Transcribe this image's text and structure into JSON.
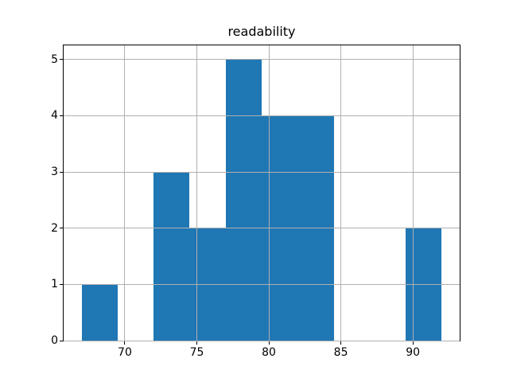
{
  "chart_data": {
    "type": "bar",
    "subtype": "histogram",
    "title": "readability",
    "xlabel": "",
    "ylabel": "",
    "bin_edges": [
      67.0,
      69.5,
      72.0,
      74.5,
      77.0,
      79.5,
      82.0,
      84.5,
      87.0,
      89.5,
      92.0
    ],
    "counts": [
      1,
      0,
      3,
      2,
      5,
      4,
      4,
      0,
      0,
      2
    ],
    "xticks": [
      70,
      75,
      80,
      85,
      90
    ],
    "yticks": [
      0,
      1,
      2,
      3,
      4,
      5
    ],
    "xlim": [
      65.75,
      93.25
    ],
    "ylim": [
      0,
      5.25
    ],
    "grid": true,
    "legend": false,
    "colors": {
      "bar": "#1f77b4",
      "grid": "#b0b0b0",
      "axis": "#000000",
      "text": "#000000",
      "background": "#ffffff"
    }
  }
}
